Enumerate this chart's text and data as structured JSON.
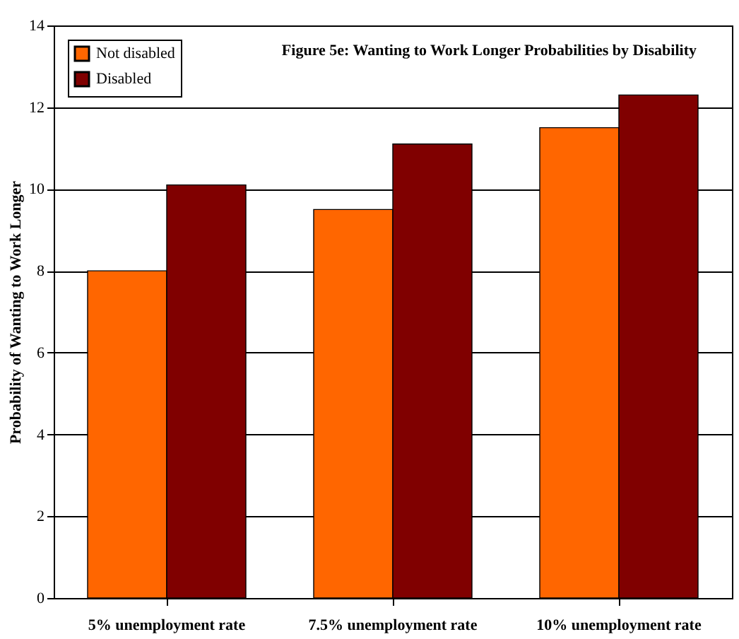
{
  "chart_data": {
    "type": "bar",
    "title": "Figure 5e: Wanting to Work Longer Probabilities by Disability",
    "ylabel": "Probability of Wanting to Work Longer",
    "categories": [
      "5% unemployment rate",
      "7.5% unemployment rate",
      "10% unemployment rate"
    ],
    "series": [
      {
        "name": "Not disabled",
        "color": "#ff6600",
        "values": [
          8.0,
          9.5,
          11.5
        ]
      },
      {
        "name": "Disabled",
        "color": "#800000",
        "values": [
          10.1,
          11.1,
          12.3
        ]
      }
    ],
    "ylim": [
      0,
      14
    ],
    "yticks": [
      0,
      2,
      4,
      6,
      8,
      10,
      12,
      14
    ],
    "grid": "y",
    "legend": "top left"
  }
}
